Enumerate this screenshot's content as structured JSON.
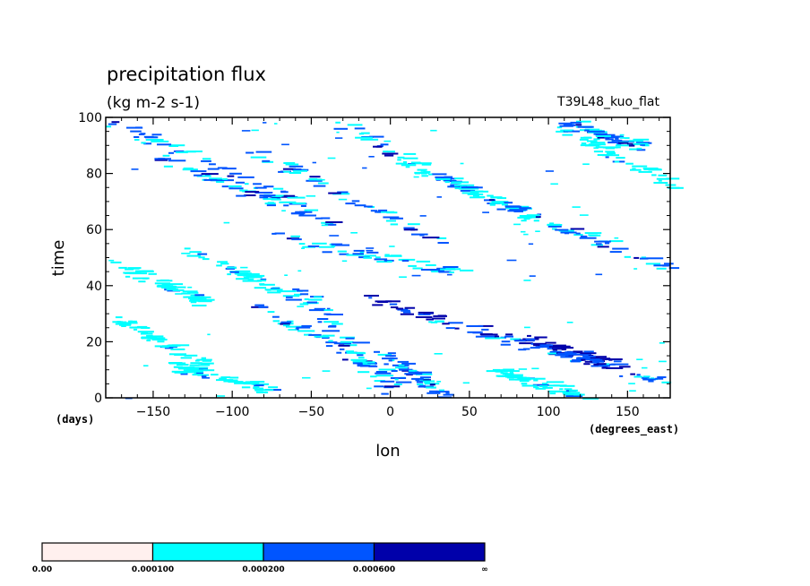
{
  "chart_data": {
    "type": "heatmap",
    "title": "precipitation flux",
    "subtitle": "(kg m-2 s-1)",
    "run_label": "T39L48_kuo_flat",
    "xlabel": "lon",
    "ylabel": "time",
    "x_units": "(degrees_east)",
    "y_units": "(days)",
    "xlim": [
      -180,
      177
    ],
    "ylim": [
      0,
      100
    ],
    "xticks": [
      -150,
      -100,
      -50,
      0,
      50,
      100,
      150
    ],
    "yticks": [
      0,
      20,
      40,
      60,
      80,
      100
    ],
    "grid": false,
    "colorbar": {
      "boundaries": [
        "0.00",
        "0.000100",
        "0.000200",
        "0.000600",
        "∞"
      ],
      "colors": [
        "#fff0ee",
        "#00ffff",
        "#0055ff",
        "#0000aa"
      ]
    },
    "bands": [
      {
        "x0": -180,
        "t0": 99,
        "x1": -60,
        "t1": 70,
        "level": 2
      },
      {
        "x0": -175,
        "t0": 28,
        "x1": -120,
        "t1": 12,
        "level": 1
      },
      {
        "x0": -150,
        "t0": 86,
        "x1": -40,
        "t1": 62,
        "level": 2
      },
      {
        "x0": -95,
        "t0": 89,
        "x1": 30,
        "t1": 56,
        "level": 2
      },
      {
        "x0": -35,
        "t0": 98,
        "x1": 60,
        "t1": 70,
        "level": 2
      },
      {
        "x0": -10,
        "t0": 88,
        "x1": 100,
        "t1": 62,
        "level": 1
      },
      {
        "x0": -130,
        "t0": 53,
        "x1": -50,
        "t1": 33,
        "level": 1
      },
      {
        "x0": -90,
        "t0": 34,
        "x1": 10,
        "t1": 5,
        "level": 2
      },
      {
        "x0": -60,
        "t0": 40,
        "x1": -5,
        "t1": 3,
        "level": 2
      },
      {
        "x0": -20,
        "t0": 36,
        "x1": 140,
        "t1": 11,
        "level": 3
      },
      {
        "x0": 20,
        "t0": 28,
        "x1": 177,
        "t1": 5,
        "level": 2
      },
      {
        "x0": -80,
        "t0": 58,
        "x1": 40,
        "t1": 45,
        "level": 2
      },
      {
        "x0": -10,
        "t0": 17,
        "x1": 35,
        "t1": 0,
        "level": 2
      },
      {
        "x0": 100,
        "t0": 98,
        "x1": 177,
        "t1": 76,
        "level": 1
      },
      {
        "x0": 50,
        "t0": 73,
        "x1": 177,
        "t1": 46,
        "level": 2
      },
      {
        "x0": 110,
        "t0": 98,
        "x1": 155,
        "t1": 90,
        "level": 2
      },
      {
        "x0": -140,
        "t0": 12,
        "x1": -80,
        "t1": 3,
        "level": 1
      },
      {
        "x0": 60,
        "t0": 10,
        "x1": 120,
        "t1": 1,
        "level": 1
      },
      {
        "x0": -175,
        "t0": 48,
        "x1": -120,
        "t1": 34,
        "level": 1
      },
      {
        "x0": 80,
        "t0": 22,
        "x1": 150,
        "t1": 10,
        "level": 3
      }
    ]
  }
}
